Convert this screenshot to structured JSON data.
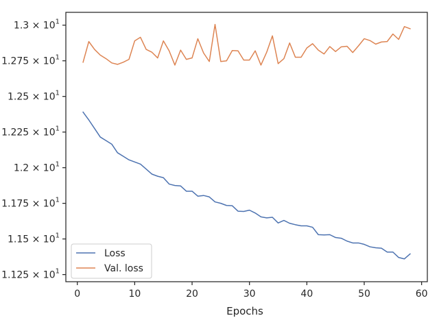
{
  "chart_data": {
    "type": "line",
    "title": "",
    "xlabel": "Epochs",
    "ylabel": "",
    "xlim": [
      -2,
      61
    ],
    "ylim": [
      11.2,
      13.09
    ],
    "x_ticks": [
      0,
      10,
      20,
      30,
      40,
      50,
      60
    ],
    "x_tick_labels": [
      "0",
      "10",
      "20",
      "30",
      "40",
      "50",
      "60"
    ],
    "y_ticks": [
      11.25,
      11.5,
      11.75,
      12.0,
      12.25,
      12.5,
      12.75,
      13.0
    ],
    "y_tick_labels": [
      {
        "base": "1.125 × 10",
        "exp": "1"
      },
      {
        "base": "1.15 × 10",
        "exp": "1"
      },
      {
        "base": "1.175 × 10",
        "exp": "1"
      },
      {
        "base": "1.2 × 10",
        "exp": "1"
      },
      {
        "base": "1.225 × 10",
        "exp": "1"
      },
      {
        "base": "1.25 × 10",
        "exp": "1"
      },
      {
        "base": "1.275 × 10",
        "exp": "1"
      },
      {
        "base": "1.3 × 10",
        "exp": "1"
      }
    ],
    "legend_position": "lower-left",
    "grid": false,
    "series": [
      {
        "name": "Loss",
        "color": "#4c72b0",
        "x": [
          1,
          2,
          3,
          4,
          5,
          6,
          7,
          8,
          9,
          10,
          11,
          12,
          13,
          14,
          15,
          16,
          17,
          18,
          19,
          20,
          21,
          22,
          23,
          24,
          25,
          26,
          27,
          28,
          29,
          30,
          31,
          32,
          33,
          34,
          35,
          36,
          37,
          38,
          39,
          40,
          41,
          42,
          43,
          44,
          45,
          46,
          47,
          48,
          49,
          50,
          51,
          52,
          53,
          54,
          55,
          56,
          57,
          58
        ],
        "values": [
          12.39,
          12.335,
          12.275,
          12.215,
          12.19,
          12.165,
          12.105,
          12.08,
          12.055,
          12.04,
          12.025,
          11.99,
          11.955,
          11.94,
          11.93,
          11.885,
          11.875,
          11.872,
          11.835,
          11.835,
          11.8,
          11.805,
          11.795,
          11.76,
          11.75,
          11.735,
          11.733,
          11.695,
          11.693,
          11.702,
          11.682,
          11.655,
          11.648,
          11.652,
          11.612,
          11.63,
          11.61,
          11.6,
          11.592,
          11.592,
          11.582,
          11.53,
          11.528,
          11.53,
          11.51,
          11.505,
          11.485,
          11.472,
          11.472,
          11.462,
          11.445,
          11.438,
          11.435,
          11.408,
          11.408,
          11.37,
          11.36,
          11.395
        ]
      },
      {
        "name": "Val. loss",
        "color": "#dd8452",
        "x": [
          1,
          2,
          3,
          4,
          5,
          6,
          7,
          8,
          9,
          10,
          11,
          12,
          13,
          14,
          15,
          16,
          17,
          18,
          19,
          20,
          21,
          22,
          23,
          24,
          25,
          26,
          27,
          28,
          29,
          30,
          31,
          32,
          33,
          34,
          35,
          36,
          37,
          38,
          39,
          40,
          41,
          42,
          43,
          44,
          45,
          46,
          47,
          48,
          49,
          50,
          51,
          52,
          53,
          54,
          55,
          56,
          57,
          58
        ],
        "values": [
          12.74,
          12.885,
          12.83,
          12.79,
          12.765,
          12.735,
          12.725,
          12.74,
          12.76,
          12.89,
          12.915,
          12.83,
          12.81,
          12.77,
          12.89,
          12.82,
          12.72,
          12.825,
          12.76,
          12.77,
          12.905,
          12.805,
          12.745,
          13.005,
          12.745,
          12.75,
          12.822,
          12.82,
          12.755,
          12.755,
          12.82,
          12.72,
          12.81,
          12.925,
          12.73,
          12.765,
          12.875,
          12.775,
          12.775,
          12.84,
          12.87,
          12.825,
          12.798,
          12.85,
          12.815,
          12.848,
          12.852,
          12.808,
          12.855,
          12.905,
          12.892,
          12.867,
          12.882,
          12.885,
          12.938,
          12.9,
          12.99,
          12.975
        ]
      }
    ]
  }
}
